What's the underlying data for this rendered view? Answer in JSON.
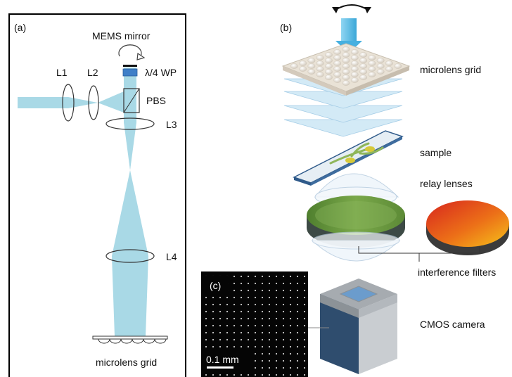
{
  "panel_a": {
    "label": "(a)",
    "mems_mirror": "MEMS mirror",
    "l1": "L1",
    "l2": "L2",
    "waveplate": "λ/4 WP",
    "pbs": "PBS",
    "l3": "L3",
    "l4": "L4",
    "microlens_grid": "microlens grid"
  },
  "panel_b": {
    "label": "(b)",
    "microlens_grid": "microlens grid",
    "sample": "sample",
    "relay_lenses": "relay lenses",
    "interference_filters": "interference filters",
    "cmos_camera": "CMOS camera"
  },
  "panel_c": {
    "label": "(c)",
    "scale_bar": "0.1 mm"
  },
  "colors": {
    "beam": "#a9d9e6",
    "beam_arrow": "#4fb8e0",
    "filter_green": "#6b9a3e",
    "filter_orange": "#e8641a",
    "camera_blue": "#2f4d6e",
    "camera_gray": "#9ea3a8"
  }
}
